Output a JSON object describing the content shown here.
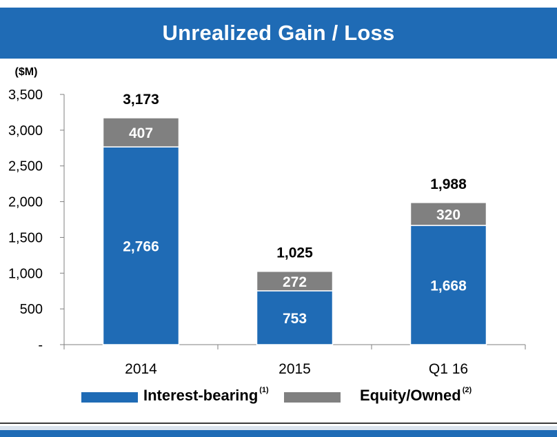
{
  "header": {
    "title": "Unrealized Gain / Loss"
  },
  "colors": {
    "header_bg": "#1F6BB5",
    "interest_bearing": "#1F6BB5",
    "equity_owned": "#808080"
  },
  "chart_data": {
    "type": "bar",
    "stacked": true,
    "title": "Unrealized Gain / Loss",
    "unit_label": "($M)",
    "categories": [
      "2014",
      "2015",
      "Q1 16"
    ],
    "series": [
      {
        "name": "Interest-bearing",
        "footnote": "(1)",
        "values": [
          2766,
          753,
          1668
        ],
        "labels": [
          "2,766",
          "753",
          "1,668"
        ]
      },
      {
        "name": "Equity/Owned",
        "footnote": "(2)",
        "values": [
          407,
          272,
          320
        ],
        "labels": [
          "407",
          "272",
          "320"
        ]
      }
    ],
    "totals": [
      3173,
      1025,
      1988
    ],
    "total_labels": [
      "3,173",
      "1,025",
      "1,988"
    ],
    "ylim": [
      0,
      3500
    ],
    "yticks": [
      0,
      500,
      1000,
      1500,
      2000,
      2500,
      3000,
      3500
    ],
    "ytick_labels": [
      "-",
      "500",
      "1,000",
      "1,500",
      "2,000",
      "2,500",
      "3,000",
      "3,500"
    ],
    "grid": false,
    "legend_position": "bottom"
  }
}
